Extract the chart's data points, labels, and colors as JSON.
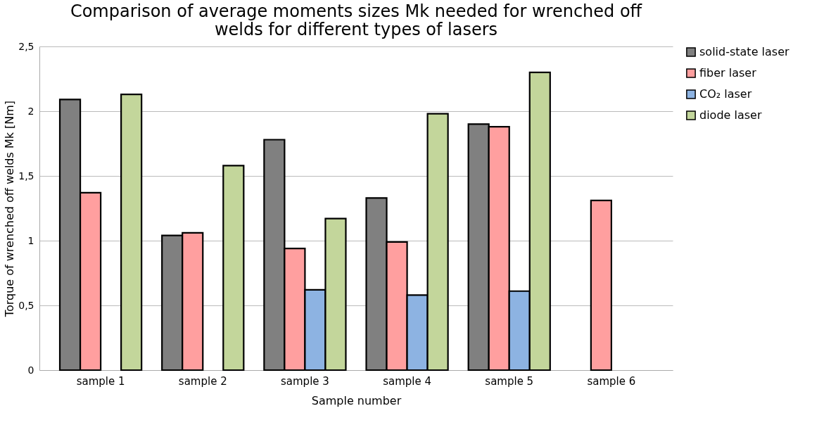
{
  "chart_data": {
    "type": "bar",
    "title": "Comparison of average moments sizes Mk needed for wrenched off welds for different types of lasers",
    "xlabel": "Sample number",
    "ylabel": "Torque of wrenched off welds Mk [Nm]",
    "categories": [
      "sample 1",
      "sample 2",
      "sample 3",
      "sample 4",
      "sample 5",
      "sample 6"
    ],
    "series": [
      {
        "name": "solid-state laser",
        "color": "#808080",
        "values": [
          2.09,
          1.04,
          1.78,
          1.33,
          1.9,
          null
        ]
      },
      {
        "name": "fiber laser",
        "color": "#ff9f9f",
        "values": [
          1.37,
          1.06,
          0.94,
          0.99,
          1.88,
          1.31
        ]
      },
      {
        "name": "CO₂ laser",
        "color": "#8db3e2",
        "values": [
          null,
          null,
          0.62,
          0.58,
          0.61,
          null
        ]
      },
      {
        "name": "diode laser",
        "color": "#c3d69b",
        "values": [
          2.13,
          1.58,
          1.17,
          1.98,
          2.3,
          null
        ]
      }
    ],
    "ylim": [
      0,
      2.5
    ],
    "yticks": [
      0,
      {
        "value": 0.5,
        "label": "0,5"
      },
      1,
      {
        "value": 1.5,
        "label": "1,5"
      },
      2,
      {
        "value": 2.5,
        "label": "2,5"
      }
    ],
    "grid": "y",
    "legend": "right"
  }
}
